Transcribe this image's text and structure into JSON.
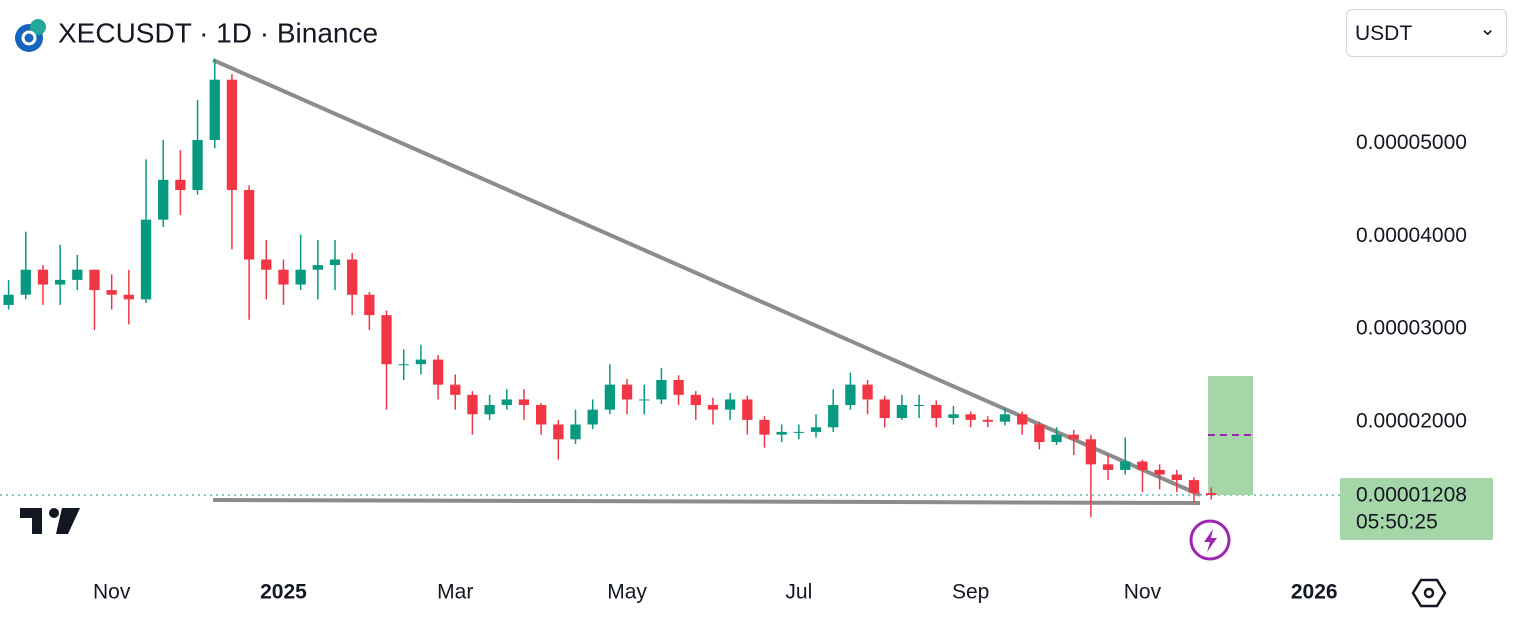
{
  "chart_data": {
    "type": "candlestick",
    "title": "XECUSDT · 1D · Binance",
    "currency": "USDT",
    "up_color": "#089981",
    "down_color": "#f23645",
    "categories": [
      null,
      null,
      null,
      null,
      null,
      null,
      "Nov",
      null,
      null,
      null,
      null,
      null,
      null,
      null,
      null,
      null,
      "2025",
      null,
      null,
      null,
      null,
      null,
      null,
      null,
      null,
      null,
      "Mar",
      null,
      null,
      null,
      null,
      null,
      null,
      null,
      null,
      null,
      "May",
      null,
      null,
      null,
      null,
      null,
      null,
      null,
      null,
      null,
      "Jul",
      null,
      null,
      null,
      null,
      null,
      null,
      null,
      null,
      null,
      "Sep",
      null,
      null,
      null,
      null,
      null,
      null,
      null,
      null,
      null,
      "Nov",
      null,
      null,
      null,
      null,
      null,
      null,
      null,
      null,
      null,
      "2026",
      null
    ],
    "open": [
      3.26e-05,
      3.37e-05,
      3.64e-05,
      3.48e-05,
      3.53e-05,
      3.64e-05,
      3.42e-05,
      3.37e-05,
      3.32e-05,
      4.18e-05,
      4.61e-05,
      4.5e-05,
      5.04e-05,
      5.69e-05,
      4.5e-05,
      3.75e-05,
      3.64e-05,
      3.48e-05,
      3.64e-05,
      3.69e-05,
      3.75e-05,
      3.37e-05,
      3.15e-05,
      2.62e-05,
      2.62e-05,
      2.67e-05,
      2.4e-05,
      2.29e-05,
      2.08e-05,
      2.18e-05,
      2.24e-05,
      2.18e-05,
      1.97e-05,
      1.81e-05,
      1.97e-05,
      2.13e-05,
      2.4e-05,
      2.24e-05,
      2.24e-05,
      2.45e-05,
      2.29e-05,
      2.18e-05,
      2.13e-05,
      2.24e-05,
      2.02e-05,
      1.86e-05,
      1.89e-05,
      1.89e-05,
      1.94e-05,
      2.18e-05,
      2.4e-05,
      2.24e-05,
      2.04e-05,
      2.18e-05,
      2.18e-05,
      2.04e-05,
      2.08e-05,
      2.02e-05,
      2e-05,
      2.08e-05,
      1.97e-05,
      1.78e-05,
      1.86e-05,
      1.81e-05,
      1.54e-05,
      1.48e-05,
      1.57e-05,
      1.48e-05,
      1.43e-05,
      1.37e-05,
      1.23e-05,
      null,
      null,
      null,
      null,
      null,
      null,
      null
    ],
    "high": [
      3.53e-05,
      4.05e-05,
      3.69e-05,
      3.91e-05,
      3.8e-05,
      3.64e-05,
      3.59e-05,
      3.64e-05,
      4.83e-05,
      5.04e-05,
      4.93e-05,
      5.47e-05,
      5.91e-05,
      5.75e-05,
      4.55e-05,
      3.96e-05,
      3.75e-05,
      4.02e-05,
      3.96e-05,
      3.96e-05,
      3.82e-05,
      3.4e-05,
      3.2e-05,
      2.78e-05,
      2.83e-05,
      2.72e-05,
      2.51e-05,
      2.33e-05,
      2.29e-05,
      2.35e-05,
      2.35e-05,
      2.2e-05,
      2.02e-05,
      2.13e-05,
      2.24e-05,
      2.62e-05,
      2.46e-05,
      2.4e-05,
      2.58e-05,
      2.5e-05,
      2.33e-05,
      2.26e-05,
      2.31e-05,
      2.28e-05,
      2.06e-05,
      1.97e-05,
      1.97e-05,
      2.08e-05,
      2.35e-05,
      2.53e-05,
      2.45e-05,
      2.28e-05,
      2.29e-05,
      2.29e-05,
      2.23e-05,
      2.17e-05,
      2.11e-05,
      2.06e-05,
      2.15e-05,
      2.11e-05,
      2e-05,
      1.94e-05,
      1.91e-05,
      1.86e-05,
      1.64e-05,
      1.83e-05,
      1.59e-05,
      1.54e-05,
      1.48e-05,
      1.4e-05,
      1.29e-05,
      null,
      null,
      null,
      null,
      null,
      null,
      null
    ],
    "low": [
      3.21e-05,
      3.32e-05,
      3.26e-05,
      3.26e-05,
      3.42e-05,
      2.99e-05,
      3.21e-05,
      3.05e-05,
      3.28e-05,
      4.1e-05,
      4.23e-05,
      4.45e-05,
      4.95e-05,
      3.86e-05,
      3.1e-05,
      3.32e-05,
      3.26e-05,
      3.42e-05,
      3.32e-05,
      3.42e-05,
      3.15e-05,
      2.99e-05,
      2.13e-05,
      2.45e-05,
      2.51e-05,
      2.24e-05,
      2.13e-05,
      1.86e-05,
      2.02e-05,
      2.13e-05,
      2.02e-05,
      1.86e-05,
      1.59e-05,
      1.76e-05,
      1.92e-05,
      2.08e-05,
      2.08e-05,
      2.08e-05,
      2.19e-05,
      2.18e-05,
      2.02e-05,
      1.97e-05,
      2.02e-05,
      1.86e-05,
      1.72e-05,
      1.78e-05,
      1.81e-05,
      1.83e-05,
      1.89e-05,
      2.13e-05,
      2.08e-05,
      1.94e-05,
      2.02e-05,
      2.04e-05,
      1.94e-05,
      1.97e-05,
      1.94e-05,
      1.94e-05,
      1.96e-05,
      1.86e-05,
      1.7e-05,
      1.75e-05,
      1.64e-05,
      9.7e-06,
      1.37e-05,
      1.43e-05,
      1.24e-05,
      1.27e-05,
      1.24e-05,
      1.13e-05,
      1.16e-05,
      null,
      null,
      null,
      null,
      null,
      null,
      null
    ],
    "close": [
      3.37e-05,
      3.64e-05,
      3.48e-05,
      3.53e-05,
      3.64e-05,
      3.42e-05,
      3.37e-05,
      3.32e-05,
      4.18e-05,
      4.61e-05,
      4.5e-05,
      5.04e-05,
      5.69e-05,
      4.5e-05,
      3.75e-05,
      3.64e-05,
      3.48e-05,
      3.64e-05,
      3.69e-05,
      3.75e-05,
      3.37e-05,
      3.15e-05,
      2.62e-05,
      2.62e-05,
      2.67e-05,
      2.4e-05,
      2.29e-05,
      2.08e-05,
      2.18e-05,
      2.24e-05,
      2.18e-05,
      1.97e-05,
      1.81e-05,
      1.97e-05,
      2.13e-05,
      2.4e-05,
      2.24e-05,
      2.24e-05,
      2.45e-05,
      2.29e-05,
      2.18e-05,
      2.13e-05,
      2.24e-05,
      2.02e-05,
      1.86e-05,
      1.89e-05,
      1.89e-05,
      1.94e-05,
      2.18e-05,
      2.4e-05,
      2.24e-05,
      2.04e-05,
      2.18e-05,
      2.18e-05,
      2.04e-05,
      2.08e-05,
      2.02e-05,
      2e-05,
      2.08e-05,
      1.97e-05,
      1.78e-05,
      1.86e-05,
      1.81e-05,
      1.54e-05,
      1.48e-05,
      1.57e-05,
      1.48e-05,
      1.43e-05,
      1.37e-05,
      1.23e-05,
      1.208e-05,
      null,
      null,
      null,
      null,
      null,
      null,
      null
    ],
    "ylim": [
      4e-06,
      6.55e-05
    ],
    "yticks": [
      {
        "value": 2e-05,
        "label": "0.00002000"
      },
      {
        "value": 3e-05,
        "label": "0.00003000"
      },
      {
        "value": 4e-05,
        "label": "0.00004000"
      },
      {
        "value": 5e-05,
        "label": "0.00005000"
      }
    ],
    "last_price": 1.208e-05,
    "countdown": "05:50:25"
  }
}
